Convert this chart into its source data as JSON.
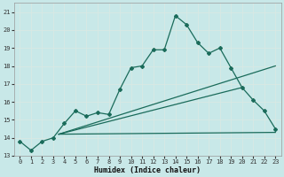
{
  "xlabel": "Humidex (Indice chaleur)",
  "background_color": "#c8e8e8",
  "grid_color": "#aacccc",
  "line_color": "#1a6b5a",
  "xlim": [
    -0.5,
    23.5
  ],
  "ylim": [
    13,
    21.5
  ],
  "yticks": [
    13,
    14,
    15,
    16,
    17,
    18,
    19,
    20,
    21
  ],
  "xticks": [
    0,
    1,
    2,
    3,
    4,
    5,
    6,
    7,
    8,
    9,
    10,
    11,
    12,
    13,
    14,
    15,
    16,
    17,
    18,
    19,
    20,
    21,
    22,
    23
  ],
  "main_line_x": [
    0,
    1,
    2,
    3,
    4,
    5,
    6,
    7,
    8,
    9,
    10,
    11,
    12,
    13,
    14,
    15,
    16,
    17,
    18,
    19,
    20,
    21,
    22,
    23
  ],
  "main_line_y": [
    13.8,
    13.3,
    13.8,
    14.0,
    14.8,
    15.5,
    15.2,
    15.4,
    15.3,
    16.7,
    17.9,
    18.0,
    18.9,
    18.9,
    20.8,
    20.3,
    19.3,
    18.7,
    19.0,
    17.9,
    16.8,
    16.1,
    15.5,
    14.5
  ],
  "straight_lines": [
    {
      "x": [
        3.5,
        23
      ],
      "y": [
        14.2,
        18.0
      ]
    },
    {
      "x": [
        3.5,
        20
      ],
      "y": [
        14.2,
        16.8
      ]
    },
    {
      "x": [
        3.5,
        23
      ],
      "y": [
        14.2,
        14.3
      ]
    }
  ]
}
